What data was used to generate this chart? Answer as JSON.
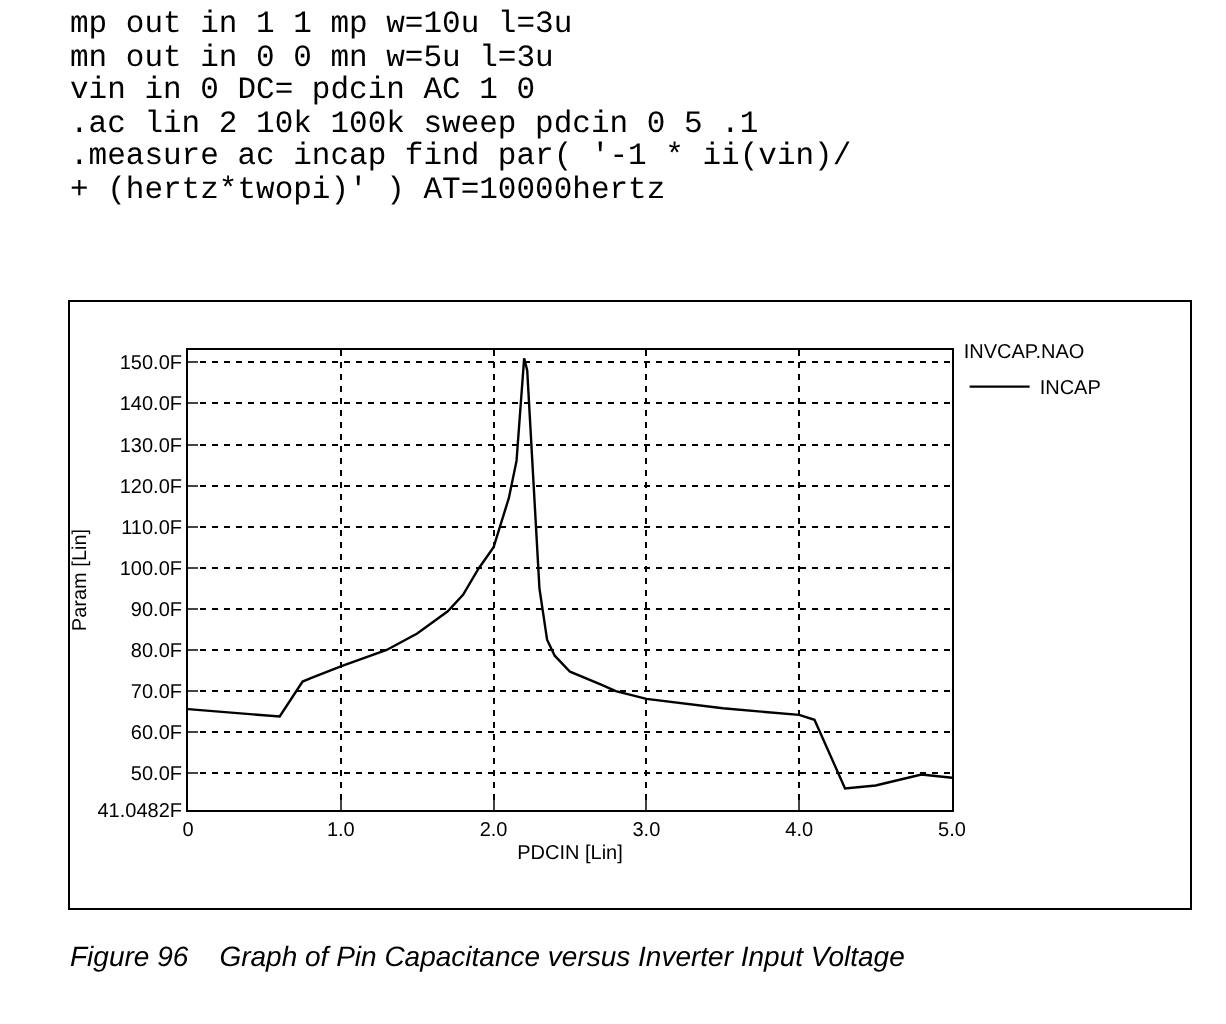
{
  "chart_data": {
    "type": "line",
    "annotations": [
      "mp out in 1 1 mp w=10u l=3u\nmn out in 0 0 mn w=5u l=3u\nvin in 0 DC= pdcin AC 1 0\n.ac lin 2 10k 100k sweep pdcin 0 5 .1\n.measure ac incap find par( '-1 * ii(vin)/\n+ (hertz*twopi)' ) AT=10000hertz",
      "Figure 96    Graph of Pin Capacitance versus Inverter Input Voltage"
    ],
    "xlabel": "PDCIN [Lin]",
    "ylabel": "Param [Lin]",
    "legend_title": "INVCAP.NAO",
    "x": [
      0,
      0.6,
      0.75,
      0.8,
      1.0,
      1.3,
      1.5,
      1.7,
      1.8,
      1.9,
      2.0,
      2.1,
      2.15,
      2.2,
      2.22,
      2.3,
      2.35,
      2.4,
      2.5,
      2.7,
      2.8,
      3.0,
      3.5,
      4.0,
      4.1,
      4.3,
      4.5,
      4.8,
      5.0
    ],
    "series": [
      {
        "name": "INCAP",
        "color": "#000000",
        "values": [
          65.6,
          63.8,
          72.3,
          73.1,
          76,
          80,
          84,
          89.4,
          93.4,
          99.7,
          105,
          117,
          126,
          151,
          148,
          95,
          82.5,
          78.6,
          74.7,
          71.6,
          70,
          68.1,
          65.8,
          64.2,
          63,
          46.3,
          47,
          49.7,
          48.9
        ]
      }
    ],
    "xlim": [
      0,
      5
    ],
    "xticks": [
      0,
      {
        "value": 1,
        "label": "1.0"
      },
      {
        "value": 2,
        "label": "2.0"
      },
      {
        "value": 3,
        "label": "3.0"
      },
      {
        "value": 4,
        "label": "4.0"
      },
      {
        "value": 5,
        "label": "5.0"
      }
    ],
    "ylim": [
      41.0482,
      153
    ],
    "yticks": [
      {
        "value": 41.0482,
        "label": "41.0482F"
      },
      {
        "value": 50,
        "label": "50.0F"
      },
      {
        "value": 60,
        "label": "60.0F"
      },
      {
        "value": 70,
        "label": "70.0F"
      },
      {
        "value": 80,
        "label": "80.0F"
      },
      {
        "value": 90,
        "label": "90.0F"
      },
      {
        "value": 100,
        "label": "100.0F"
      },
      {
        "value": 110,
        "label": "110.0F"
      },
      {
        "value": 120,
        "label": "120.0F"
      },
      {
        "value": 130,
        "label": "130.0F"
      },
      {
        "value": 140,
        "label": "140.0F"
      },
      {
        "value": 150,
        "label": "150.0F"
      }
    ],
    "grid": true,
    "legend": "top right"
  }
}
